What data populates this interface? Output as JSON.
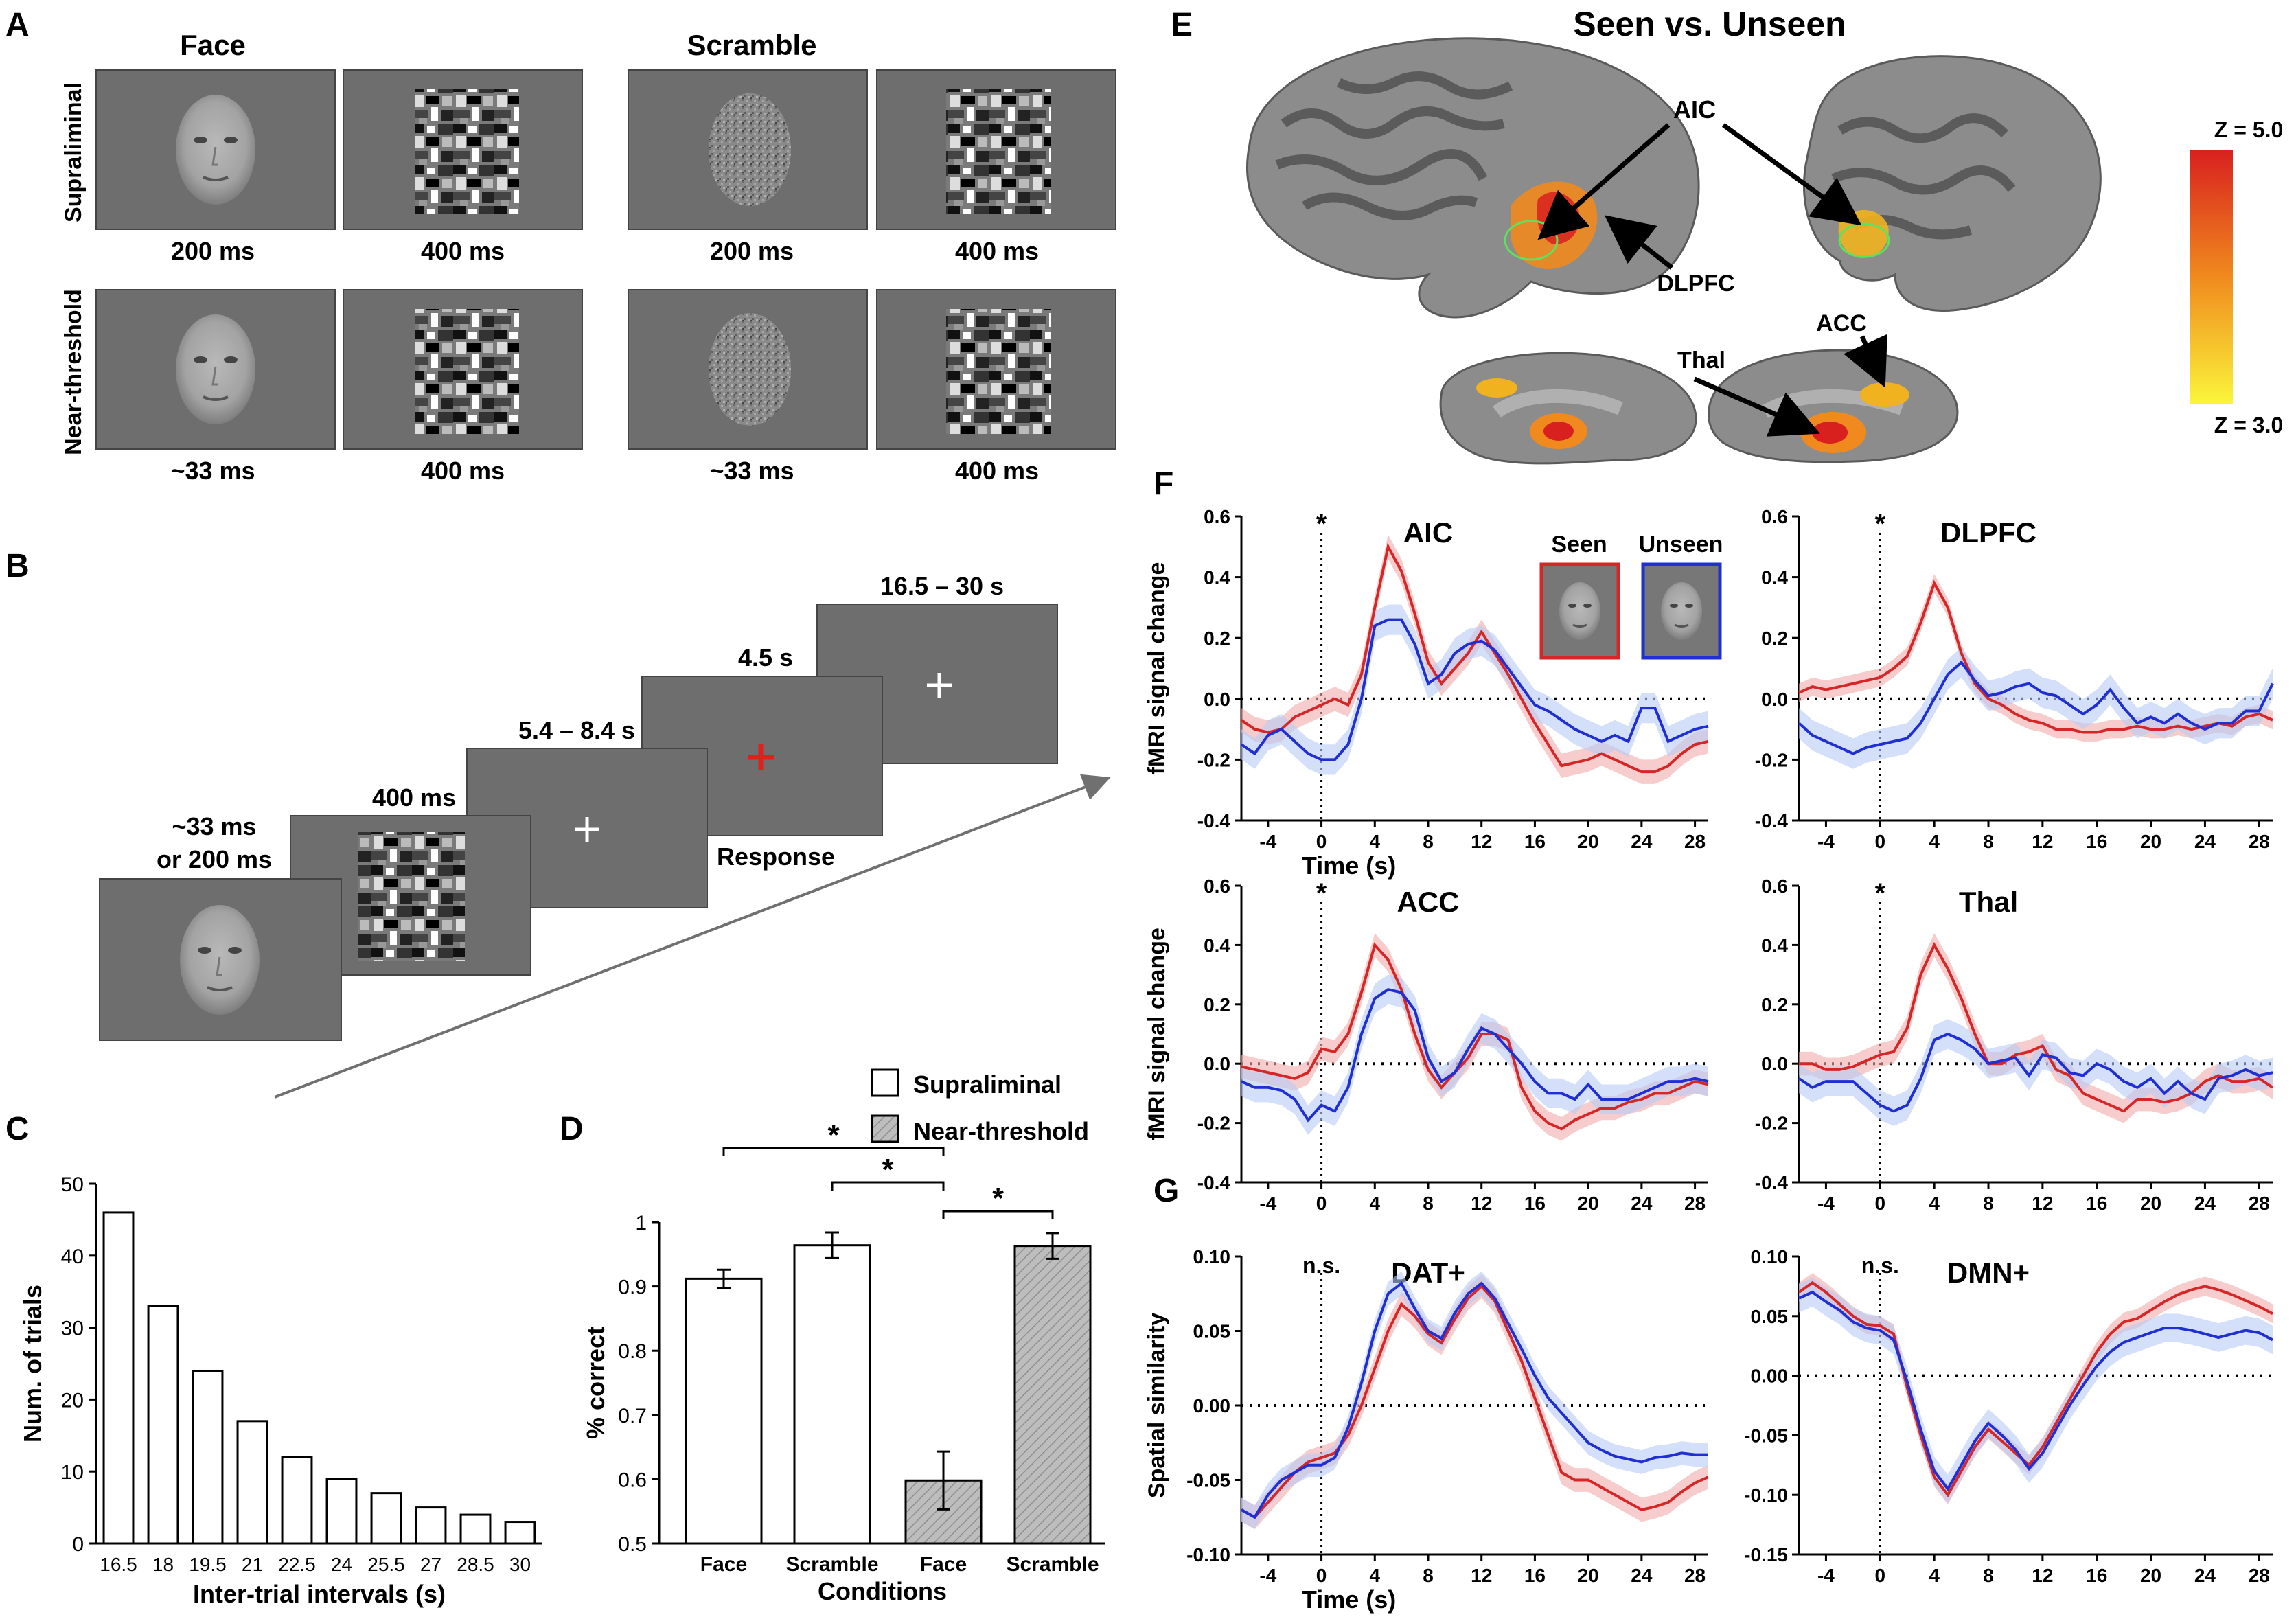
{
  "panel_letters": [
    "A",
    "B",
    "C",
    "D",
    "E",
    "F",
    "G"
  ],
  "panelA": {
    "col_headers": [
      "Face",
      "Scramble"
    ],
    "row_labels": [
      "Supraliminal",
      "Near-threshold"
    ],
    "durations_row1": [
      "200 ms",
      "400 ms",
      "200 ms",
      "400 ms"
    ],
    "durations_row2": [
      "~33 ms",
      "400 ms",
      "~33 ms",
      "400 ms"
    ]
  },
  "panelB": {
    "stim_duration": [
      "~33 ms",
      "or 200 ms"
    ],
    "mask_duration": "400 ms",
    "delay_duration": "5.4 – 8.4 s",
    "response_duration": "4.5 s",
    "response_label": "Response",
    "iti_duration": "16.5 – 30 s"
  },
  "panelE": {
    "title": "Seen vs. Unseen",
    "regions": [
      "AIC",
      "DLPFC",
      "ACC",
      "Thal"
    ],
    "colorbar_max": "Z = 5.0",
    "colorbar_min": "Z = 3.0"
  },
  "legendF": {
    "seen": "Seen",
    "unseen": "Unseen"
  },
  "colors": {
    "seen": "#d62728",
    "unseen": "#1f2fd4",
    "seen_band": "#f2aaaa",
    "unseen_band": "#b8cbf5",
    "gray_stim": "#6e6e6e"
  },
  "chart_data": [
    {
      "id": "C",
      "type": "bar",
      "categories": [
        "16.5",
        "18",
        "19.5",
        "21",
        "22.5",
        "24",
        "25.5",
        "27",
        "28.5",
        "30"
      ],
      "values": [
        46,
        33,
        24,
        17,
        12,
        9,
        7,
        5,
        4,
        3
      ],
      "xlabel": "Inter-trial intervals (s)",
      "ylabel": "Num. of trials",
      "ylim": [
        0,
        50
      ],
      "yticks": [
        "0",
        "10",
        "20",
        "30",
        "40",
        "50"
      ]
    },
    {
      "id": "D",
      "type": "bar",
      "categories": [
        "Face",
        "Scramble",
        "Face",
        "Scramble"
      ],
      "values": [
        0.912,
        0.964,
        0.598,
        0.963
      ],
      "errors": [
        0.014,
        0.02,
        0.045,
        0.02
      ],
      "groups": [
        "Supraliminal",
        "Supraliminal",
        "Near-threshold",
        "Near-threshold"
      ],
      "legend": [
        "Supraliminal",
        "Near-threshold"
      ],
      "xlabel": "Conditions",
      "ylabel": "% correct",
      "ylim": [
        0.5,
        1.0
      ],
      "yticks": [
        "0.5",
        "0.6",
        "0.7",
        "0.8",
        "0.9",
        "1"
      ],
      "significance": [
        "*",
        "*",
        "*"
      ]
    },
    {
      "id": "F-AIC",
      "type": "line",
      "title": "AIC",
      "ylabel": "fMRI signal change",
      "xlabel": "Time (s)",
      "xlim": [
        -6,
        29
      ],
      "ylim": [
        -0.4,
        0.6
      ],
      "xticks": [
        "-4",
        "0",
        "4",
        "8",
        "12",
        "16",
        "20",
        "24",
        "28"
      ],
      "yticks": [
        "-0.4",
        "-0.2",
        "0.0",
        "0.2",
        "0.4",
        "0.6"
      ],
      "marker": "*",
      "x": [
        -6,
        -5,
        -4,
        -3,
        -2,
        -1,
        0,
        1,
        2,
        3,
        4,
        5,
        6,
        7,
        8,
        9,
        10,
        11,
        12,
        13,
        14,
        15,
        16,
        17,
        18,
        19,
        20,
        21,
        22,
        23,
        24,
        25,
        26,
        27,
        28,
        29
      ],
      "series": [
        {
          "name": "Seen",
          "values": [
            -0.07,
            -0.1,
            -0.11,
            -0.1,
            -0.06,
            -0.04,
            -0.02,
            0.0,
            -0.02,
            0.08,
            0.3,
            0.5,
            0.42,
            0.28,
            0.12,
            0.05,
            0.1,
            0.15,
            0.22,
            0.15,
            0.08,
            0.0,
            -0.08,
            -0.15,
            -0.22,
            -0.21,
            -0.2,
            -0.18,
            -0.2,
            -0.22,
            -0.24,
            -0.24,
            -0.22,
            -0.18,
            -0.15,
            -0.14
          ],
          "band": 0.04
        },
        {
          "name": "Unseen",
          "values": [
            -0.15,
            -0.18,
            -0.12,
            -0.1,
            -0.14,
            -0.18,
            -0.2,
            -0.2,
            -0.15,
            0.0,
            0.24,
            0.26,
            0.26,
            0.18,
            0.05,
            0.08,
            0.15,
            0.18,
            0.19,
            0.16,
            0.1,
            0.04,
            -0.02,
            -0.04,
            -0.07,
            -0.1,
            -0.12,
            -0.14,
            -0.12,
            -0.14,
            -0.03,
            -0.03,
            -0.14,
            -0.12,
            -0.1,
            -0.09
          ],
          "band": 0.05
        }
      ]
    },
    {
      "id": "F-DLPFC",
      "type": "line",
      "title": "DLPFC",
      "ylabel": "",
      "xlabel": "",
      "xlim": [
        -6,
        29
      ],
      "ylim": [
        -0.4,
        0.6
      ],
      "xticks": [
        "-4",
        "0",
        "4",
        "8",
        "12",
        "16",
        "20",
        "24",
        "28"
      ],
      "yticks": [
        "-0.4",
        "-0.2",
        "0.0",
        "0.2",
        "0.4",
        "0.6"
      ],
      "marker": "*",
      "x": [
        -6,
        -5,
        -4,
        -3,
        -2,
        -1,
        0,
        1,
        2,
        3,
        4,
        5,
        6,
        7,
        8,
        9,
        10,
        11,
        12,
        13,
        14,
        15,
        16,
        17,
        18,
        19,
        20,
        21,
        22,
        23,
        24,
        25,
        26,
        27,
        28,
        29
      ],
      "series": [
        {
          "name": "Seen",
          "values": [
            0.02,
            0.04,
            0.03,
            0.04,
            0.05,
            0.06,
            0.07,
            0.1,
            0.14,
            0.25,
            0.38,
            0.3,
            0.15,
            0.05,
            0.0,
            -0.02,
            -0.05,
            -0.07,
            -0.08,
            -0.1,
            -0.1,
            -0.11,
            -0.11,
            -0.1,
            -0.1,
            -0.09,
            -0.1,
            -0.1,
            -0.09,
            -0.1,
            -0.09,
            -0.08,
            -0.09,
            -0.06,
            -0.05,
            -0.07
          ],
          "band": 0.03
        },
        {
          "name": "Unseen",
          "values": [
            -0.08,
            -0.12,
            -0.14,
            -0.16,
            -0.18,
            -0.16,
            -0.15,
            -0.14,
            -0.13,
            -0.08,
            0.0,
            0.08,
            0.12,
            0.06,
            0.01,
            0.02,
            0.04,
            0.05,
            0.02,
            0.01,
            -0.02,
            -0.05,
            -0.02,
            0.03,
            -0.03,
            -0.08,
            -0.06,
            -0.08,
            -0.05,
            -0.08,
            -0.1,
            -0.08,
            -0.08,
            -0.04,
            -0.04,
            0.05
          ],
          "band": 0.05
        }
      ]
    },
    {
      "id": "F-ACC",
      "type": "line",
      "title": "ACC",
      "ylabel": "fMRI signal change",
      "xlabel": "",
      "xlim": [
        -6,
        29
      ],
      "ylim": [
        -0.4,
        0.6
      ],
      "xticks": [
        "-4",
        "0",
        "4",
        "8",
        "12",
        "16",
        "20",
        "24",
        "28"
      ],
      "yticks": [
        "-0.4",
        "-0.2",
        "0.0",
        "0.2",
        "0.4",
        "0.6"
      ],
      "marker": "*",
      "x": [
        -6,
        -5,
        -4,
        -3,
        -2,
        -1,
        0,
        1,
        2,
        3,
        4,
        5,
        6,
        7,
        8,
        9,
        10,
        11,
        12,
        13,
        14,
        15,
        16,
        17,
        18,
        19,
        20,
        21,
        22,
        23,
        24,
        25,
        26,
        27,
        28,
        29
      ],
      "series": [
        {
          "name": "Seen",
          "values": [
            -0.01,
            -0.02,
            -0.03,
            -0.04,
            -0.05,
            -0.03,
            0.05,
            0.04,
            0.1,
            0.24,
            0.4,
            0.35,
            0.25,
            0.1,
            -0.02,
            -0.08,
            -0.03,
            0.02,
            0.1,
            0.1,
            0.08,
            -0.08,
            -0.16,
            -0.2,
            -0.22,
            -0.19,
            -0.17,
            -0.15,
            -0.15,
            -0.13,
            -0.12,
            -0.1,
            -0.1,
            -0.08,
            -0.06,
            -0.07
          ],
          "band": 0.04
        },
        {
          "name": "Unseen",
          "values": [
            -0.06,
            -0.08,
            -0.08,
            -0.09,
            -0.12,
            -0.19,
            -0.14,
            -0.16,
            -0.08,
            0.1,
            0.22,
            0.25,
            0.24,
            0.18,
            0.02,
            -0.06,
            -0.03,
            0.05,
            0.12,
            0.1,
            0.05,
            0.0,
            -0.06,
            -0.1,
            -0.1,
            -0.12,
            -0.07,
            -0.12,
            -0.12,
            -0.12,
            -0.1,
            -0.08,
            -0.06,
            -0.06,
            -0.05,
            -0.06
          ],
          "band": 0.05
        }
      ]
    },
    {
      "id": "F-Thal",
      "type": "line",
      "title": "Thal",
      "ylabel": "",
      "xlabel": "",
      "xlim": [
        -6,
        29
      ],
      "ylim": [
        -0.4,
        0.6
      ],
      "xticks": [
        "-4",
        "0",
        "4",
        "8",
        "12",
        "16",
        "20",
        "24",
        "28"
      ],
      "yticks": [
        "-0.4",
        "-0.2",
        "0.0",
        "0.2",
        "0.4",
        "0.6"
      ],
      "marker": "*",
      "x": [
        -6,
        -5,
        -4,
        -3,
        -2,
        -1,
        0,
        1,
        2,
        3,
        4,
        5,
        6,
        7,
        8,
        9,
        10,
        11,
        12,
        13,
        14,
        15,
        16,
        17,
        18,
        19,
        20,
        21,
        22,
        23,
        24,
        25,
        26,
        27,
        28,
        29
      ],
      "series": [
        {
          "name": "Seen",
          "values": [
            0.0,
            0.0,
            -0.02,
            -0.02,
            -0.01,
            0.01,
            0.03,
            0.04,
            0.12,
            0.3,
            0.4,
            0.32,
            0.22,
            0.1,
            0.0,
            0.0,
            0.03,
            0.04,
            0.06,
            -0.02,
            -0.04,
            -0.1,
            -0.12,
            -0.14,
            -0.16,
            -0.12,
            -0.12,
            -0.13,
            -0.12,
            -0.1,
            -0.06,
            -0.04,
            -0.06,
            -0.06,
            -0.05,
            -0.08
          ],
          "band": 0.04
        },
        {
          "name": "Unseen",
          "values": [
            -0.05,
            -0.08,
            -0.06,
            -0.06,
            -0.06,
            -0.1,
            -0.14,
            -0.16,
            -0.14,
            -0.05,
            0.08,
            0.1,
            0.08,
            0.05,
            0.0,
            0.01,
            0.02,
            -0.04,
            0.03,
            0.02,
            -0.03,
            -0.04,
            0.0,
            -0.02,
            -0.06,
            -0.08,
            -0.05,
            -0.1,
            -0.06,
            -0.1,
            -0.12,
            -0.05,
            -0.04,
            -0.02,
            -0.04,
            -0.03
          ],
          "band": 0.05
        }
      ]
    },
    {
      "id": "G-DAT",
      "type": "line",
      "title": "DAT+",
      "ylabel": "Spatial similarity",
      "xlabel": "Time (s)",
      "xlim": [
        -6,
        29
      ],
      "ylim": [
        -0.1,
        0.1
      ],
      "xticks": [
        "-4",
        "0",
        "4",
        "8",
        "12",
        "16",
        "20",
        "24",
        "28"
      ],
      "yticks": [
        "-0.10",
        "-0.05",
        "0.00",
        "0.05",
        "0.10"
      ],
      "marker": "n.s.",
      "x": [
        -6,
        -5,
        -4,
        -3,
        -2,
        -1,
        0,
        1,
        2,
        3,
        4,
        5,
        6,
        7,
        8,
        9,
        10,
        11,
        12,
        13,
        14,
        15,
        16,
        17,
        18,
        19,
        20,
        21,
        22,
        23,
        24,
        25,
        26,
        27,
        28,
        29
      ],
      "series": [
        {
          "name": "Seen",
          "values": [
            -0.07,
            -0.075,
            -0.065,
            -0.055,
            -0.045,
            -0.038,
            -0.035,
            -0.032,
            -0.02,
            0.0,
            0.025,
            0.05,
            0.068,
            0.06,
            0.048,
            0.042,
            0.058,
            0.072,
            0.08,
            0.07,
            0.05,
            0.03,
            0.005,
            -0.02,
            -0.045,
            -0.05,
            -0.05,
            -0.055,
            -0.06,
            -0.065,
            -0.07,
            -0.068,
            -0.065,
            -0.058,
            -0.052,
            -0.048
          ],
          "band": 0.008
        },
        {
          "name": "Unseen",
          "values": [
            -0.07,
            -0.075,
            -0.06,
            -0.05,
            -0.045,
            -0.04,
            -0.04,
            -0.035,
            -0.015,
            0.015,
            0.05,
            0.075,
            0.082,
            0.065,
            0.05,
            0.045,
            0.062,
            0.075,
            0.082,
            0.072,
            0.055,
            0.038,
            0.02,
            0.005,
            -0.005,
            -0.015,
            -0.025,
            -0.03,
            -0.034,
            -0.036,
            -0.038,
            -0.035,
            -0.034,
            -0.032,
            -0.033,
            -0.033
          ],
          "band": 0.008
        }
      ]
    },
    {
      "id": "G-DMN",
      "type": "line",
      "title": "DMN+",
      "ylabel": "",
      "xlabel": "",
      "xlim": [
        -6,
        29
      ],
      "ylim": [
        -0.15,
        0.1
      ],
      "xticks": [
        "-4",
        "0",
        "4",
        "8",
        "12",
        "16",
        "20",
        "24",
        "28"
      ],
      "yticks": [
        "-0.15",
        "-0.10",
        "-0.05",
        "0.00",
        "0.05",
        "0.10"
      ],
      "marker": "n.s.",
      "x": [
        -6,
        -5,
        -4,
        -3,
        -2,
        -1,
        0,
        1,
        2,
        3,
        4,
        5,
        6,
        7,
        8,
        9,
        10,
        11,
        12,
        13,
        14,
        15,
        16,
        17,
        18,
        19,
        20,
        21,
        22,
        23,
        24,
        25,
        26,
        27,
        28,
        29
      ],
      "series": [
        {
          "name": "Seen",
          "values": [
            0.07,
            0.078,
            0.07,
            0.06,
            0.05,
            0.043,
            0.042,
            0.035,
            -0.01,
            -0.05,
            -0.085,
            -0.1,
            -0.08,
            -0.06,
            -0.045,
            -0.055,
            -0.065,
            -0.075,
            -0.06,
            -0.04,
            -0.02,
            0.0,
            0.02,
            0.035,
            0.045,
            0.048,
            0.055,
            0.062,
            0.068,
            0.072,
            0.075,
            0.072,
            0.068,
            0.063,
            0.058,
            0.052
          ],
          "band": 0.008
        },
        {
          "name": "Unseen",
          "values": [
            0.065,
            0.07,
            0.062,
            0.055,
            0.045,
            0.04,
            0.038,
            0.03,
            -0.005,
            -0.045,
            -0.08,
            -0.095,
            -0.075,
            -0.055,
            -0.04,
            -0.05,
            -0.062,
            -0.078,
            -0.065,
            -0.045,
            -0.025,
            -0.008,
            0.008,
            0.02,
            0.028,
            0.032,
            0.036,
            0.04,
            0.04,
            0.038,
            0.035,
            0.032,
            0.035,
            0.038,
            0.036,
            0.03
          ],
          "band": 0.012
        }
      ]
    }
  ]
}
